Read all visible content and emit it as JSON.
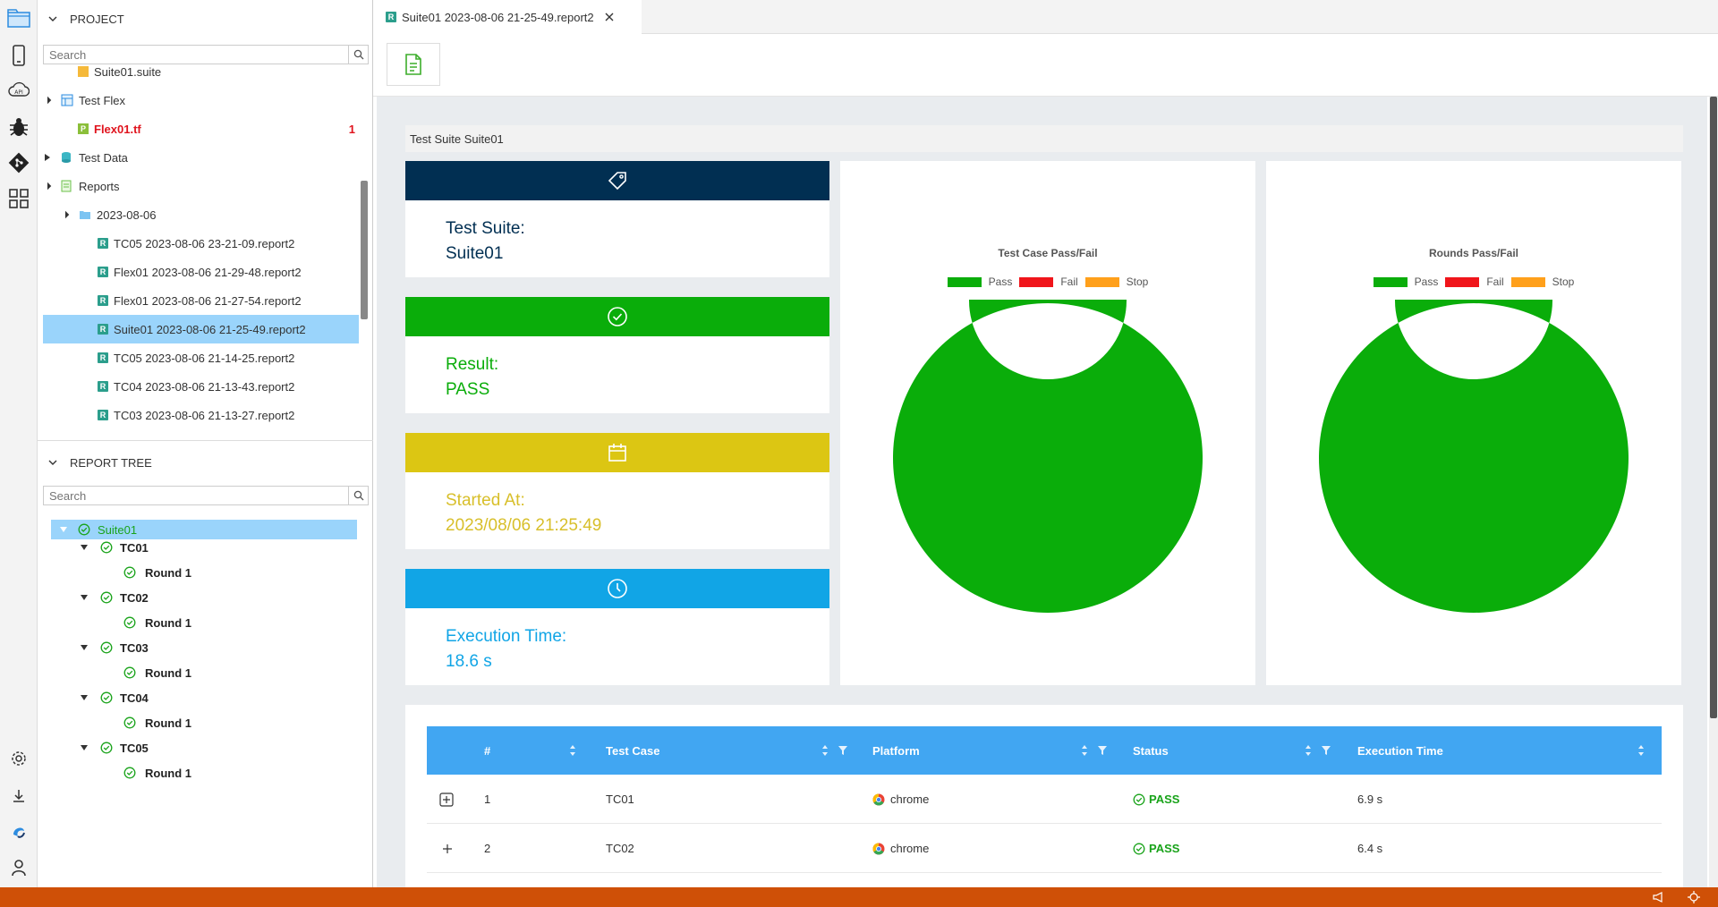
{
  "project": {
    "title": "PROJECT",
    "search_placeholder": "Search",
    "items": [
      {
        "label": "Suite01.suite"
      },
      {
        "label": "Test Flex"
      },
      {
        "label": "Flex01.tf",
        "badge": "1"
      },
      {
        "label": "Test Data"
      },
      {
        "label": "Reports"
      },
      {
        "label": "2023-08-06"
      },
      {
        "label": "TC05 2023-08-06 23-21-09.report2"
      },
      {
        "label": "Flex01 2023-08-06 21-29-48.report2"
      },
      {
        "label": "Flex01 2023-08-06 21-27-54.report2"
      },
      {
        "label": "Suite01 2023-08-06 21-25-49.report2"
      },
      {
        "label": "TC05 2023-08-06 21-14-25.report2"
      },
      {
        "label": "TC04 2023-08-06 21-13-43.report2"
      },
      {
        "label": "TC03 2023-08-06 21-13-27.report2"
      }
    ]
  },
  "report_tree": {
    "title": "REPORT TREE",
    "search_placeholder": "Search",
    "root": "Suite01",
    "cases": [
      {
        "label": "TC01",
        "round": "Round 1"
      },
      {
        "label": "TC02",
        "round": "Round 1"
      },
      {
        "label": "TC03",
        "round": "Round 1"
      },
      {
        "label": "TC04",
        "round": "Round 1"
      },
      {
        "label": "TC05",
        "round": "Round 1"
      }
    ]
  },
  "tab": {
    "label": "Suite01 2023-08-06 21-25-49.report2",
    "icon_letter": "R"
  },
  "main": {
    "suite_title": "Test Suite Suite01",
    "cards": {
      "suite": {
        "label": "Test Suite:",
        "value": "Suite01",
        "color": "#012f52"
      },
      "result": {
        "label": "Result:",
        "value": "PASS",
        "color": "#0aad0a"
      },
      "started": {
        "label": "Started At:",
        "value": "2023/08/06 21:25:49",
        "color": "#dcc613"
      },
      "exec": {
        "label": "Execution Time:",
        "value": "18.6 s",
        "color": "#11a5e6"
      }
    }
  },
  "chart_data": [
    {
      "type": "pie",
      "title": "Test Case Pass/Fail",
      "labels": [
        "Pass",
        "Fail",
        "Stop"
      ],
      "values": [
        5,
        0,
        0
      ],
      "colors": [
        "#0aad0a",
        "#f0151b",
        "#ffa01b"
      ],
      "legend": "top"
    },
    {
      "type": "pie",
      "title": "Rounds Pass/Fail",
      "labels": [
        "Pass",
        "Fail",
        "Stop"
      ],
      "values": [
        5,
        0,
        0
      ],
      "colors": [
        "#0aad0a",
        "#f0151b",
        "#ffa01b"
      ],
      "legend": "top"
    }
  ],
  "table": {
    "headers": [
      "#",
      "Test Case",
      "Platform",
      "Status",
      "Execution Time"
    ],
    "rows": [
      {
        "num": "1",
        "case": "TC01",
        "platform": "chrome",
        "status": "PASS",
        "time": "6.9 s"
      },
      {
        "num": "2",
        "case": "TC02",
        "platform": "chrome",
        "status": "PASS",
        "time": "6.4 s"
      }
    ]
  },
  "colors": {
    "accent": "#41a6f2",
    "status_bar": "#cf5007",
    "selection": "#9ad4fb",
    "pass": "#19a31a"
  }
}
